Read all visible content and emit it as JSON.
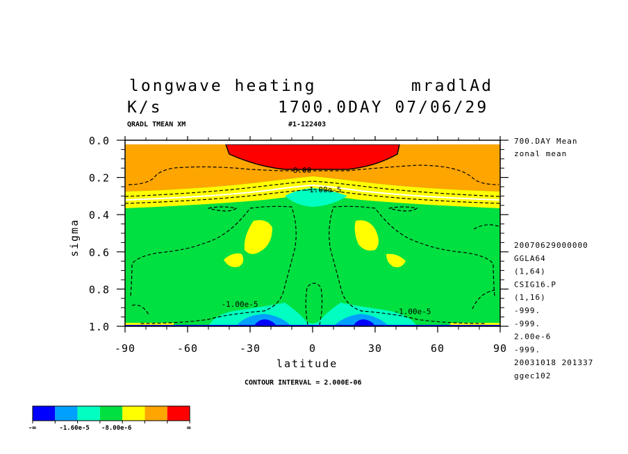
{
  "header": {
    "title_left": "longwave heating",
    "title_right": "mradlAd",
    "units": "K/s",
    "time": "1700.0DAY 07/06/29",
    "var_label": "QRADL TMEAN XM",
    "run_label": "#1-122403"
  },
  "side_info": {
    "top": [
      "700.DAY Mean",
      "zonal mean"
    ],
    "lines": [
      "20070629000000",
      "GGLA64",
      "(1,64)",
      "CSIG16.P",
      "(1,16)",
      "-999.",
      "-999.",
      "2.00e-6",
      "-999.",
      "20031018 201337",
      "ggec102"
    ]
  },
  "footer": {
    "contour_interval": "CONTOUR INTERVAL = 2.000E-06"
  },
  "chart_data": {
    "type": "heatmap",
    "subtype": "filled contour",
    "xlabel": "latitude",
    "ylabel": "sigma",
    "x_ticks": [
      -90,
      -60,
      -30,
      0,
      30,
      60,
      90
    ],
    "x_tick_labels": [
      "-90",
      "-60",
      "-30",
      "0",
      "30",
      "60",
      "90"
    ],
    "y_ticks": [
      0.0,
      0.2,
      0.4,
      0.6,
      0.8,
      1.0
    ],
    "y_tick_labels": [
      "0.0",
      "0.2",
      "0.4",
      "0.6",
      "0.8",
      "1.0"
    ],
    "xlim": [
      -90,
      90
    ],
    "ylim": [
      1.0,
      0.0
    ],
    "contour_labels": [
      {
        "text": "0.00",
        "lat": -5,
        "sigma": 0.16
      },
      {
        "text": "-1.00e-5",
        "lat": 5,
        "sigma": 0.265
      },
      {
        "text": "-1.00e-5",
        "lat": -35,
        "sigma": 0.88
      },
      {
        "text": "-1.00e-5",
        "lat": 48,
        "sigma": 0.92
      }
    ],
    "colorbar": {
      "colors": [
        "#0000ff",
        "#00a0ff",
        "#00ffc0",
        "#00e040",
        "#ffff00",
        "#ffa500",
        "#ff0000"
      ],
      "labels": [
        "-∞",
        "-1.60e-5",
        "-8.00e-6",
        "∞"
      ]
    }
  }
}
